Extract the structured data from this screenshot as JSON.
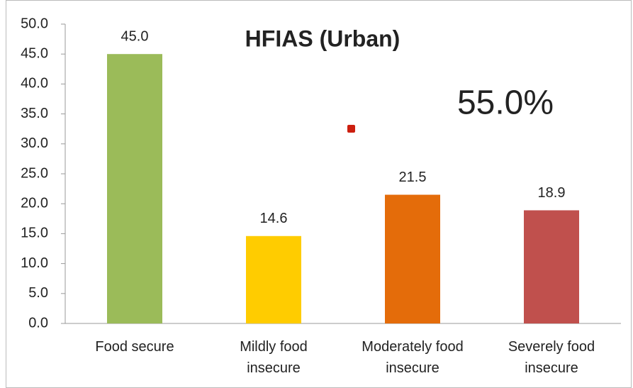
{
  "chart_data": {
    "type": "bar",
    "title": "HFIAS (Urban)",
    "annotation": "55.0%",
    "categories": [
      "Food secure",
      "Mildly food insecure",
      "Moderately food insecure",
      "Severely food insecure"
    ],
    "values": [
      45.0,
      14.6,
      21.5,
      18.9
    ],
    "value_labels": [
      "45.0",
      "14.6",
      "21.5",
      "18.9"
    ],
    "colors": [
      "#9bbb59",
      "#ffcc00",
      "#e46c0a",
      "#c0504d"
    ],
    "ylim": [
      0,
      50
    ],
    "yticks": [
      {
        "value": 0,
        "label": "0.0"
      },
      {
        "value": 5,
        "label": "5.0"
      },
      {
        "value": 10,
        "label": "10.0"
      },
      {
        "value": 15,
        "label": "15.0"
      },
      {
        "value": 20,
        "label": "20.0"
      },
      {
        "value": 25,
        "label": "25.0"
      },
      {
        "value": 30,
        "label": "30.0"
      },
      {
        "value": 35,
        "label": "35.0"
      },
      {
        "value": 40,
        "label": "40.0"
      },
      {
        "value": 45,
        "label": "45.0"
      },
      {
        "value": 50,
        "label": "50.0"
      }
    ],
    "grid": false
  }
}
